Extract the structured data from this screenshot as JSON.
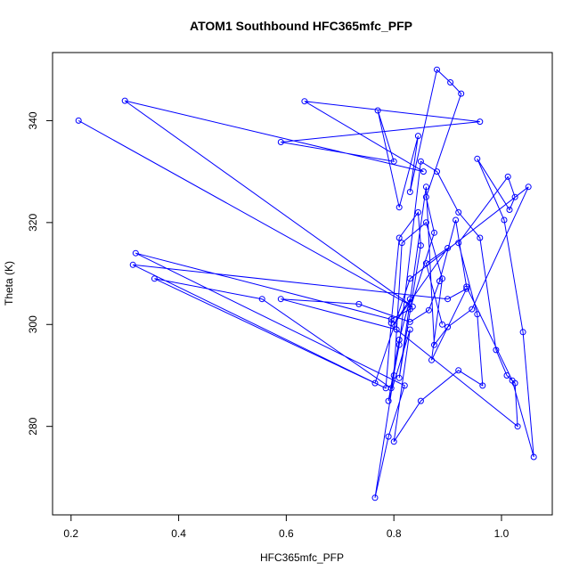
{
  "chart_data": {
    "type": "line",
    "title": "ATOM1 Southbound HFC365mfc_PFP",
    "xlabel": "HFC365mfc_PFP",
    "ylabel": "Theta (K)",
    "xlim": [
      0.2,
      1.06
    ],
    "ylim": [
      266,
      350
    ],
    "x_ticks": [
      0.2,
      0.4,
      0.6,
      0.8,
      1.0
    ],
    "x_tick_labels": [
      "0.2",
      "0.4",
      "0.6",
      "0.8",
      "1.0"
    ],
    "y_ticks": [
      280,
      300,
      320,
      340
    ],
    "y_tick_labels": [
      "280",
      "300",
      "320",
      "340"
    ],
    "color": "#0000ff",
    "marker": "open-circle",
    "grid": false,
    "series": [
      {
        "x": [
          0.214,
          0.835,
          0.3,
          0.855,
          0.634,
          0.96,
          0.59,
          0.8,
          0.77,
          0.81,
          0.845,
          0.83,
          0.88,
          0.905,
          0.925,
          0.86,
          0.875,
          0.83,
          0.795,
          0.32,
          0.82,
          0.79,
          0.765,
          0.8,
          0.815,
          0.86,
          0.89,
          0.87,
          0.935,
          0.9,
          0.315,
          0.785,
          0.795,
          0.81,
          0.845,
          0.85,
          0.81,
          0.86,
          0.875,
          0.9,
          0.945,
          1.05,
          0.83,
          0.765,
          0.355,
          0.555,
          0.795,
          0.81,
          0.85,
          0.88,
          0.92,
          0.96,
          0.99,
          1.01,
          1.025,
          1.03,
          0.805,
          0.59,
          0.735,
          0.83,
          0.865,
          0.885,
          0.915,
          0.935,
          1.02,
          1.06,
          1.04,
          1.005,
          0.955,
          1.015,
          1.025,
          1.012,
          0.92,
          0.955,
          0.965,
          0.92,
          0.85,
          0.8,
          0.83,
          0.79,
          0.81,
          0.83,
          0.8,
          0.9,
          0.86,
          0.89
        ],
        "y": [
          340,
          303.5,
          343.9,
          330,
          343.8,
          339.8,
          335.8,
          332,
          342,
          323,
          337,
          326,
          350,
          347.5,
          345.3,
          325,
          318,
          303,
          301,
          314,
          288,
          278,
          266,
          290,
          316,
          320,
          309,
          293,
          307,
          305,
          311.7,
          287.5,
          300.3,
          317,
          322,
          315.5,
          289.5,
          327,
          296,
          299.5,
          303,
          327,
          309,
          288.5,
          309,
          305,
          287.5,
          296,
          332,
          330,
          322,
          317,
          295,
          290,
          288.5,
          280,
          299,
          305,
          304,
          300.5,
          302.8,
          308.5,
          320.5,
          307.4,
          289,
          274,
          298.5,
          320.5,
          332.5,
          322.5,
          325,
          329,
          316,
          302,
          288,
          291,
          285,
          277,
          299,
          285,
          297,
          305,
          300,
          315,
          312,
          300
        ]
      }
    ]
  }
}
